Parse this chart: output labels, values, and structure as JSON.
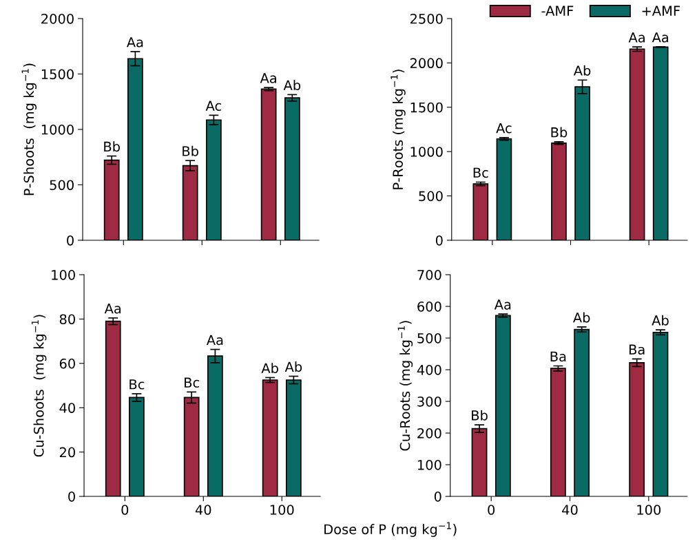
{
  "chart_data": [
    {
      "type": "bar",
      "categories": [
        "0",
        "40",
        "100"
      ],
      "ylabel": "P-Shoots  (mg kg$^{−1}$)",
      "ylim": [
        0,
        2000
      ],
      "yticks": [
        0,
        500,
        1000,
        1500,
        2000
      ],
      "tick_labels": "y",
      "grid": false,
      "legend": false,
      "series": [
        {
          "color": "#9e2a43",
          "values": [
            723,
            673,
            1364
          ],
          "errors": [
            37,
            46,
            14
          ],
          "value_labels": [
            "Bb",
            "Bb",
            "Aa"
          ]
        },
        {
          "color": "#0a6b65",
          "values": [
            1638,
            1085,
            1285
          ],
          "errors": [
            64,
            43,
            29
          ],
          "value_labels": [
            "Aa",
            "Ac",
            "Ab"
          ]
        }
      ]
    },
    {
      "type": "bar",
      "categories": [
        "0",
        "40",
        "100"
      ],
      "ylabel": "P-Roots (mg kg$^{−1}$)",
      "ylim": [
        0,
        2500
      ],
      "yticks": [
        0,
        500,
        1000,
        1500,
        2000,
        2500
      ],
      "tick_labels": "y",
      "grid": false,
      "legend": "top right",
      "series": [
        {
          "name": "-AMF",
          "color": "#9e2a43",
          "values": [
            636,
            1096,
            2156
          ],
          "errors": [
            20,
            15,
            25
          ],
          "value_labels": [
            "Bc",
            "Bb",
            "Aa"
          ]
        },
        {
          "name": "+AMF",
          "color": "#0a6b65",
          "values": [
            1143,
            1730,
            2179
          ],
          "errors": [
            15,
            77,
            3
          ],
          "value_labels": [
            "Ac",
            "Ab",
            "Aa"
          ]
        }
      ]
    },
    {
      "type": "bar",
      "categories": [
        "0",
        "40",
        "100"
      ],
      "xlabel": "Dose of P (mg kg$^{−1}$)",
      "ylabel": "Cu-Shoots  (mg kg$^{−1}$)",
      "ylim": [
        0,
        100
      ],
      "yticks": [
        0,
        20,
        40,
        60,
        80,
        100
      ],
      "grid": false,
      "legend": false,
      "series": [
        {
          "color": "#9e2a43",
          "values": [
            79.0,
            44.6,
            52.5
          ],
          "errors": [
            1.5,
            2.5,
            1.1
          ],
          "value_labels": [
            "Aa",
            "Bc",
            "Ab"
          ]
        },
        {
          "color": "#0a6b65",
          "values": [
            44.6,
            63.3,
            52.5
          ],
          "errors": [
            1.7,
            3.0,
            1.7
          ],
          "value_labels": [
            "Bc",
            "Aa",
            "Ab"
          ]
        }
      ]
    },
    {
      "type": "bar",
      "categories": [
        "0",
        "40",
        "100"
      ],
      "ylabel": "Cu-Roots (mg kg$^{−1}$)",
      "ylim": [
        0,
        700
      ],
      "yticks": [
        0,
        100,
        200,
        300,
        400,
        500,
        600,
        700
      ],
      "grid": false,
      "legend": false,
      "series": [
        {
          "color": "#9e2a43",
          "values": [
            214,
            404,
            422
          ],
          "errors": [
            12,
            8,
            12
          ],
          "value_labels": [
            "Bb",
            "Ba",
            "Ba"
          ]
        },
        {
          "color": "#0a6b65",
          "values": [
            571,
            527,
            518
          ],
          "errors": [
            5,
            8,
            8
          ],
          "value_labels": [
            "Aa",
            "Ab",
            "Ab"
          ]
        }
      ]
    }
  ]
}
